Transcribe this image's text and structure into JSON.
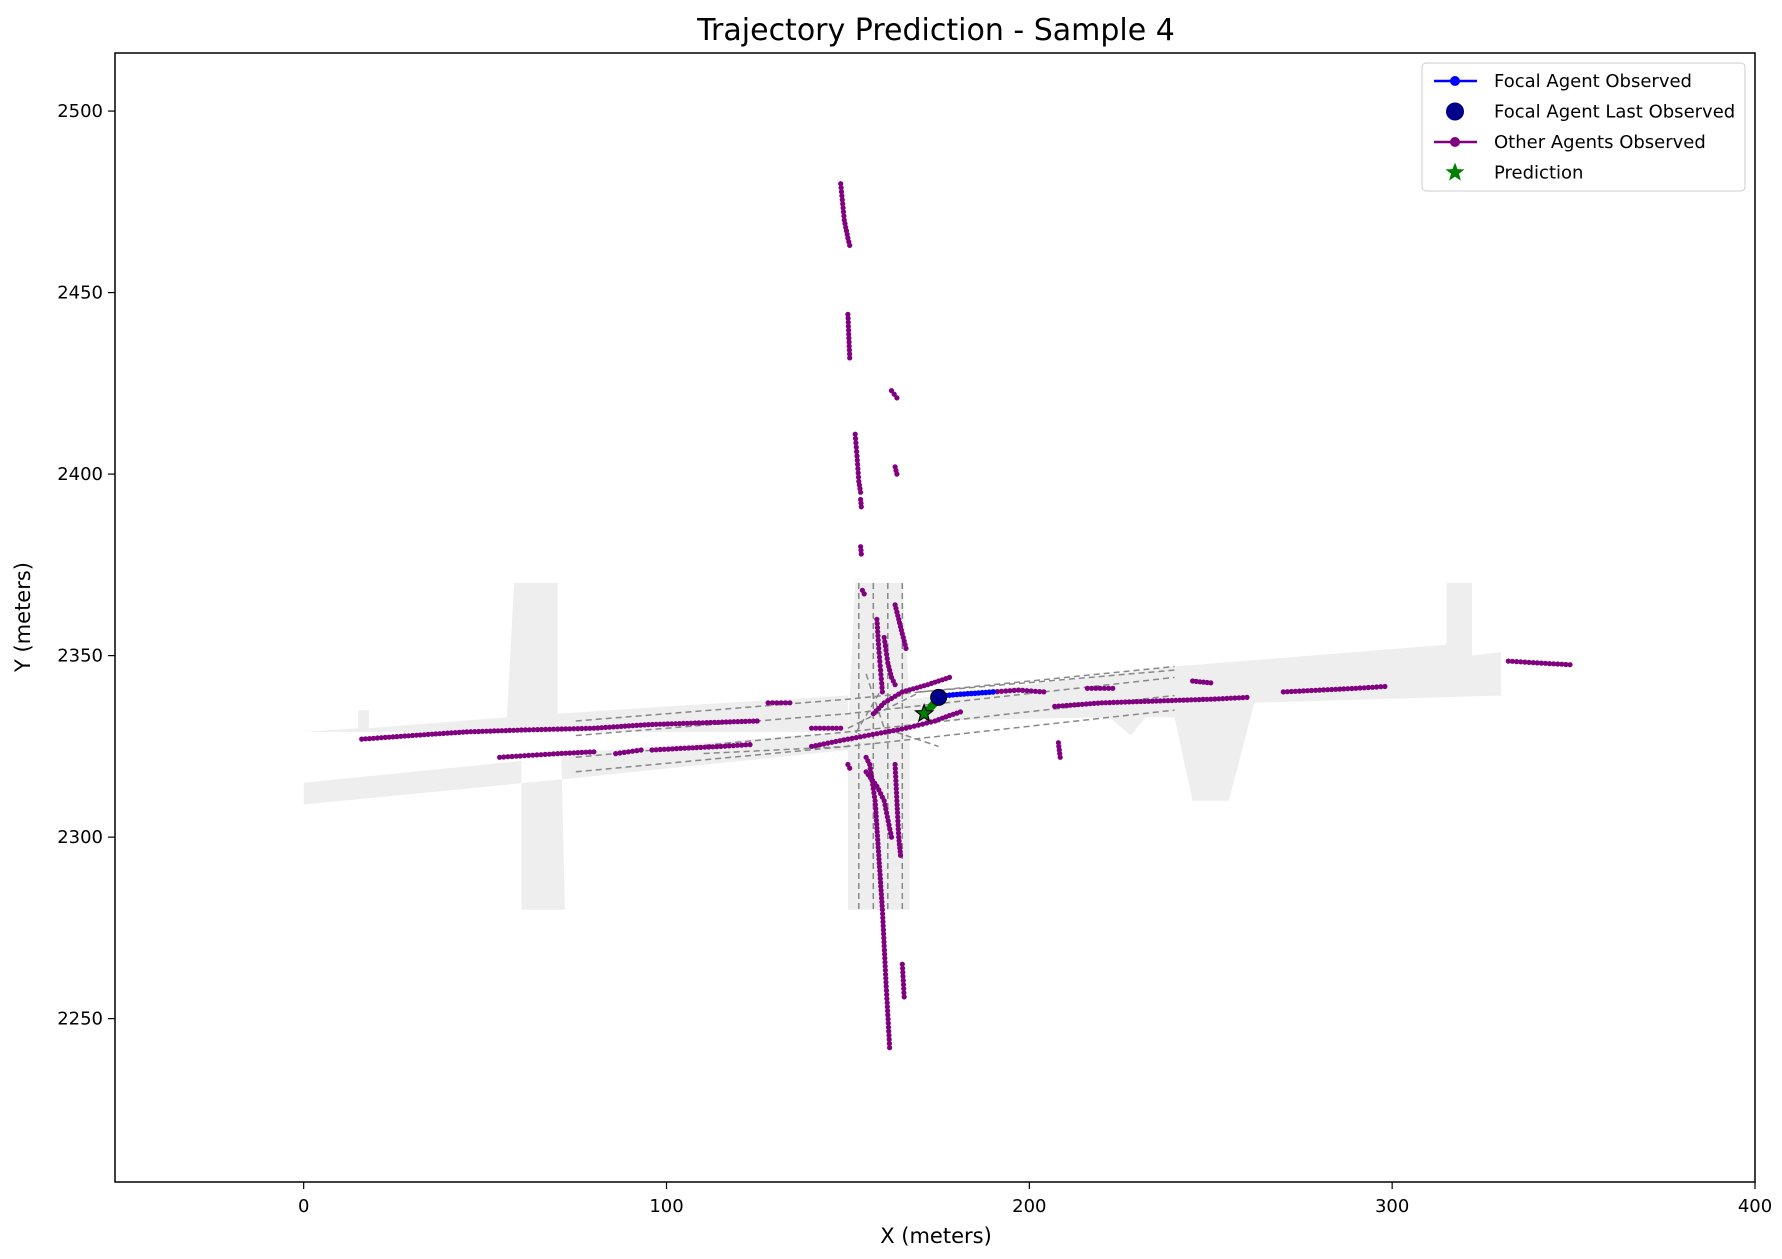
{
  "chart_data": {
    "type": "scatter",
    "title": "Trajectory Prediction - Sample 4",
    "xlabel": "X (meters)",
    "ylabel": "Y (meters)",
    "xlim": [
      -52,
      400
    ],
    "ylim": [
      2205,
      2516
    ],
    "xticks": [
      0,
      100,
      200,
      300,
      400
    ],
    "yticks": [
      2250,
      2300,
      2350,
      2400,
      2450,
      2500
    ],
    "legend_position": "top-right",
    "colors": {
      "focal": "#0000ff",
      "focal_last": "#00008b",
      "others": "#800080",
      "prediction": "#008000",
      "lanes": "#888888",
      "road": "#eeeeee"
    },
    "legend": [
      {
        "label": "Focal Agent Observed",
        "marker": "line-dot",
        "color": "#0000ff"
      },
      {
        "label": "Focal Agent Last Observed",
        "marker": "big-dot",
        "color": "#00008b"
      },
      {
        "label": "Other Agents Observed",
        "marker": "line-dot",
        "color": "#800080"
      },
      {
        "label": "Prediction",
        "marker": "star",
        "color": "#008000"
      }
    ],
    "road_polygons": [
      [
        [
          0,
          2315
        ],
        [
          60,
          2321
        ],
        [
          60,
          2280
        ],
        [
          72,
          2280
        ],
        [
          71,
          2323
        ],
        [
          150,
          2329
        ],
        [
          152,
          2370
        ],
        [
          165,
          2370
        ],
        [
          167,
          2338
        ],
        [
          240,
          2347
        ],
        [
          315,
          2353
        ],
        [
          315,
          2370
        ],
        [
          322,
          2370
        ],
        [
          322,
          2350
        ],
        [
          330,
          2351
        ],
        [
          330,
          2339
        ],
        [
          262,
          2337
        ],
        [
          255,
          2310
        ],
        [
          245,
          2310
        ],
        [
          240,
          2333
        ],
        [
          232,
          2333
        ],
        [
          228,
          2328
        ],
        [
          222,
          2333
        ],
        [
          167,
          2332
        ],
        [
          167,
          2280
        ],
        [
          150,
          2280
        ],
        [
          150,
          2324
        ],
        [
          72,
          2316
        ],
        [
          0,
          2309
        ]
      ],
      [
        [
          0,
          2329
        ],
        [
          15,
          2330
        ],
        [
          15,
          2335
        ],
        [
          18,
          2335
        ],
        [
          18,
          2330
        ],
        [
          56,
          2333
        ],
        [
          58,
          2370
        ],
        [
          70,
          2370
        ],
        [
          70,
          2334
        ],
        [
          100,
          2336
        ],
        [
          150,
          2339
        ],
        [
          150,
          2329
        ]
      ]
    ],
    "lane_lines": [
      [
        [
          75,
          2332
        ],
        [
          150,
          2338
        ],
        [
          240,
          2347
        ]
      ],
      [
        [
          75,
          2328
        ],
        [
          150,
          2334
        ],
        [
          240,
          2344
        ]
      ],
      [
        [
          75,
          2322
        ],
        [
          150,
          2329
        ],
        [
          240,
          2339
        ]
      ],
      [
        [
          75,
          2318
        ],
        [
          150,
          2325
        ],
        [
          240,
          2335
        ]
      ],
      [
        [
          150,
          2330
        ],
        [
          170,
          2340
        ],
        [
          240,
          2346
        ]
      ],
      [
        [
          153,
          2370
        ],
        [
          153,
          2280
        ]
      ],
      [
        [
          157,
          2370
        ],
        [
          157,
          2280
        ]
      ],
      [
        [
          161,
          2370
        ],
        [
          161,
          2280
        ]
      ],
      [
        [
          165,
          2370
        ],
        [
          165,
          2280
        ]
      ],
      [
        [
          155,
          2345
        ],
        [
          160,
          2330
        ],
        [
          175,
          2325
        ]
      ],
      [
        [
          160,
          2342
        ],
        [
          150,
          2325
        ],
        [
          110,
          2323
        ]
      ]
    ],
    "focal_observed": {
      "x": [
        175,
        177,
        180,
        183,
        186,
        190
      ],
      "y": [
        2338.5,
        2339,
        2339.3,
        2339.5,
        2339.7,
        2340
      ]
    },
    "focal_last": {
      "x": 175,
      "y": 2338.5
    },
    "prediction": {
      "x": [
        175,
        174,
        173.5,
        173,
        172
      ],
      "y": [
        2338,
        2337,
        2336.5,
        2336,
        2335
      ]
    },
    "prediction_end": {
      "x": 171,
      "y": 2334
    },
    "other_agents": [
      {
        "x": [
          16,
          30,
          45,
          60,
          80,
          95,
          110,
          125
        ],
        "y": [
          2327,
          2328,
          2329,
          2329.5,
          2330,
          2331,
          2331.5,
          2332
        ]
      },
      {
        "x": [
          54,
          62,
          70,
          80
        ],
        "y": [
          2322,
          2322.5,
          2323,
          2323.5
        ]
      },
      {
        "x": [
          86,
          93
        ],
        "y": [
          2323,
          2324
        ]
      },
      {
        "x": [
          96,
          105,
          115,
          123
        ],
        "y": [
          2324,
          2324.5,
          2325,
          2325.5
        ]
      },
      {
        "x": [
          128,
          134
        ],
        "y": [
          2337,
          2337
        ]
      },
      {
        "x": [
          140,
          148
        ],
        "y": [
          2330,
          2330
        ]
      },
      {
        "x": [
          140,
          150,
          158,
          166,
          174,
          178,
          181
        ],
        "y": [
          2325,
          2327,
          2328.5,
          2330,
          2332,
          2333.5,
          2334.5
        ]
      },
      {
        "x": [
          148,
          149,
          150,
          150.5
        ],
        "y": [
          2480,
          2470,
          2465,
          2463
        ]
      },
      {
        "x": [
          150,
          150.5
        ],
        "y": [
          2444,
          2432
        ]
      },
      {
        "x": [
          152,
          152.5,
          153,
          153.5
        ],
        "y": [
          2411,
          2405,
          2398,
          2395
        ]
      },
      {
        "x": [
          153.5,
          153.7
        ],
        "y": [
          2393,
          2391
        ]
      },
      {
        "x": [
          153.5,
          153.7
        ],
        "y": [
          2380,
          2378
        ]
      },
      {
        "x": [
          162,
          163.5
        ],
        "y": [
          2423,
          2421
        ]
      },
      {
        "x": [
          163,
          163.5
        ],
        "y": [
          2402,
          2400
        ]
      },
      {
        "x": [
          154,
          154.5
        ],
        "y": [
          2368,
          2367
        ]
      },
      {
        "x": [
          163,
          164,
          165,
          166
        ],
        "y": [
          2364,
          2360,
          2356,
          2352
        ]
      },
      {
        "x": [
          158,
          158.5,
          159,
          159.5
        ],
        "y": [
          2360,
          2352,
          2346,
          2340
        ]
      },
      {
        "x": [
          160,
          161,
          162,
          163
        ],
        "y": [
          2355,
          2348,
          2344,
          2342
        ]
      },
      {
        "x": [
          157,
          160,
          165,
          172,
          178
        ],
        "y": [
          2334,
          2337,
          2340,
          2342,
          2344
        ]
      },
      {
        "x": [
          155,
          158,
          160,
          162
        ],
        "y": [
          2318,
          2314,
          2310,
          2300
        ]
      },
      {
        "x": [
          150,
          150.5
        ],
        "y": [
          2320,
          2319
        ]
      },
      {
        "x": [
          155,
          156,
          157.5,
          158.5,
          159.5,
          160.5,
          161.5
        ],
        "y": [
          2322,
          2320,
          2310,
          2295,
          2280,
          2260,
          2242
        ]
      },
      {
        "x": [
          163,
          163.5,
          164,
          164.5
        ],
        "y": [
          2320,
          2310,
          2300,
          2295
        ]
      },
      {
        "x": [
          165,
          165.5
        ],
        "y": [
          2265,
          2256
        ]
      },
      {
        "x": [
          190,
          197,
          204
        ],
        "y": [
          2340,
          2340.5,
          2340
        ]
      },
      {
        "x": [
          208,
          208.5
        ],
        "y": [
          2326,
          2322
        ]
      },
      {
        "x": [
          207,
          220,
          235,
          250,
          260
        ],
        "y": [
          2336,
          2337,
          2337.5,
          2338,
          2338.5
        ]
      },
      {
        "x": [
          216,
          223
        ],
        "y": [
          2341,
          2341
        ]
      },
      {
        "x": [
          245,
          250
        ],
        "y": [
          2343,
          2342.5
        ]
      },
      {
        "x": [
          270,
          280,
          290,
          298
        ],
        "y": [
          2340,
          2340.5,
          2341,
          2341.5
        ]
      },
      {
        "x": [
          332,
          340,
          349
        ],
        "y": [
          2348.5,
          2348,
          2347.5
        ]
      }
    ]
  }
}
